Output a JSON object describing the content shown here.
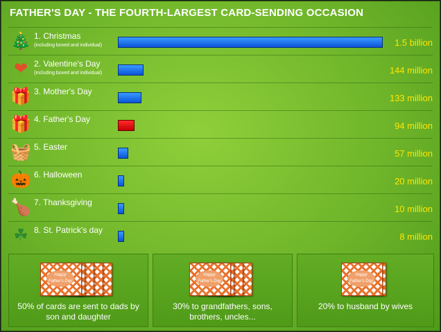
{
  "title": "FATHER'S DAY - THE FOURTH-LARGEST CARD-SENDING OCCASION",
  "chart_data": {
    "type": "bar",
    "orientation": "horizontal",
    "unit": "cards",
    "categories": [
      "1. Christmas",
      "2. Valentine's Day",
      "3. Mother's Day",
      "4. Father's Day",
      "5. Easter",
      "6. Halloween",
      "7. Thanksgiving",
      "8. St. Patrick's day"
    ],
    "sublabels": [
      "(including boxed and individual)",
      "(including boxed and individual)",
      "",
      "",
      "",
      "",
      "",
      ""
    ],
    "values": [
      1500,
      144,
      133,
      94,
      57,
      20,
      10,
      8
    ],
    "value_labels": [
      "1.5 billion",
      "144 million",
      "133 million",
      "94 million",
      "57 million",
      "20 million",
      "10 million",
      "8 million"
    ],
    "icons": [
      "christmas-tree-icon",
      "heart-icon",
      "gift-box-icon",
      "gift-box-icon",
      "easter-basket-icon",
      "jack-o-lantern-icon",
      "roast-turkey-icon",
      "shamrock-icon"
    ],
    "highlight_index": 3,
    "colors": {
      "bar": "#1f6ff0",
      "highlight": "#e00000",
      "value_text": "#ffe600"
    }
  },
  "panels": [
    {
      "text": "50% of cards are sent to dads by son and daughter",
      "card_count": 5
    },
    {
      "text": "30% to grandfathers, sons, brothers, uncles...",
      "card_count": 4
    },
    {
      "text": "20% to husband by wives",
      "card_count": 2
    }
  ],
  "card_text": "Happy Father's Day"
}
